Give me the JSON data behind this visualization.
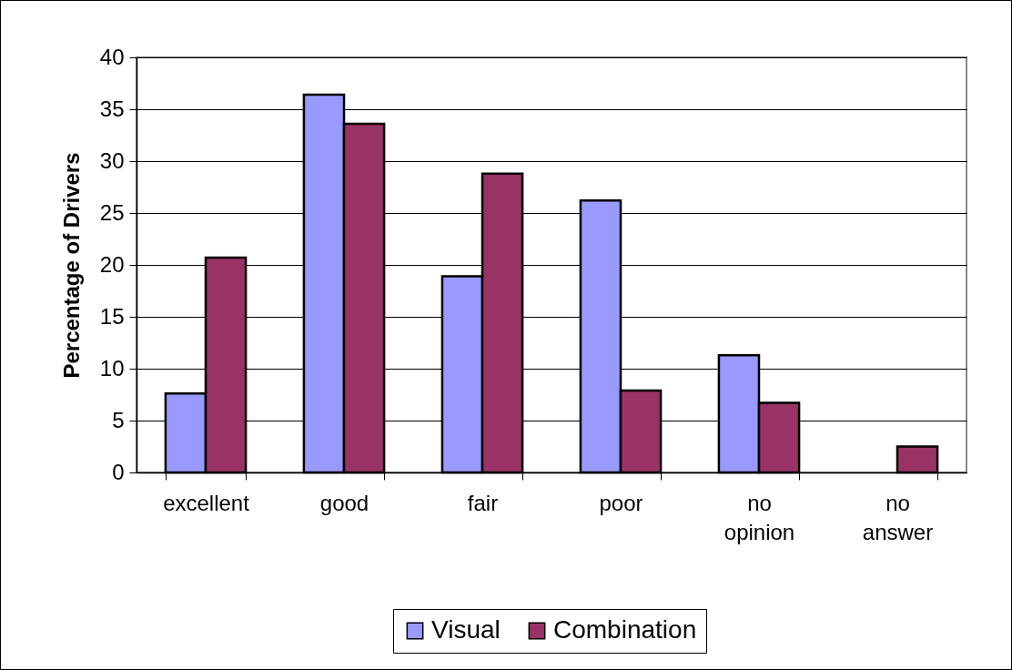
{
  "chart_data": {
    "type": "bar",
    "ylabel": "Percentage of Drivers",
    "categories": [
      "excellent",
      "good",
      "fair",
      "poor",
      "no opinion",
      "no answer"
    ],
    "series": [
      {
        "name": "Visual",
        "color": "#9999ff",
        "values": [
          7.6,
          36.4,
          18.9,
          26.2,
          11.3,
          null
        ]
      },
      {
        "name": "Combination",
        "color": "#993366",
        "values": [
          20.7,
          33.6,
          28.8,
          7.9,
          6.7,
          2.5
        ]
      }
    ],
    "ylim": [
      0,
      40
    ],
    "yticks": [
      0,
      5,
      10,
      15,
      20,
      25,
      30,
      35,
      40
    ],
    "grid": "y",
    "legend": "bottom"
  }
}
